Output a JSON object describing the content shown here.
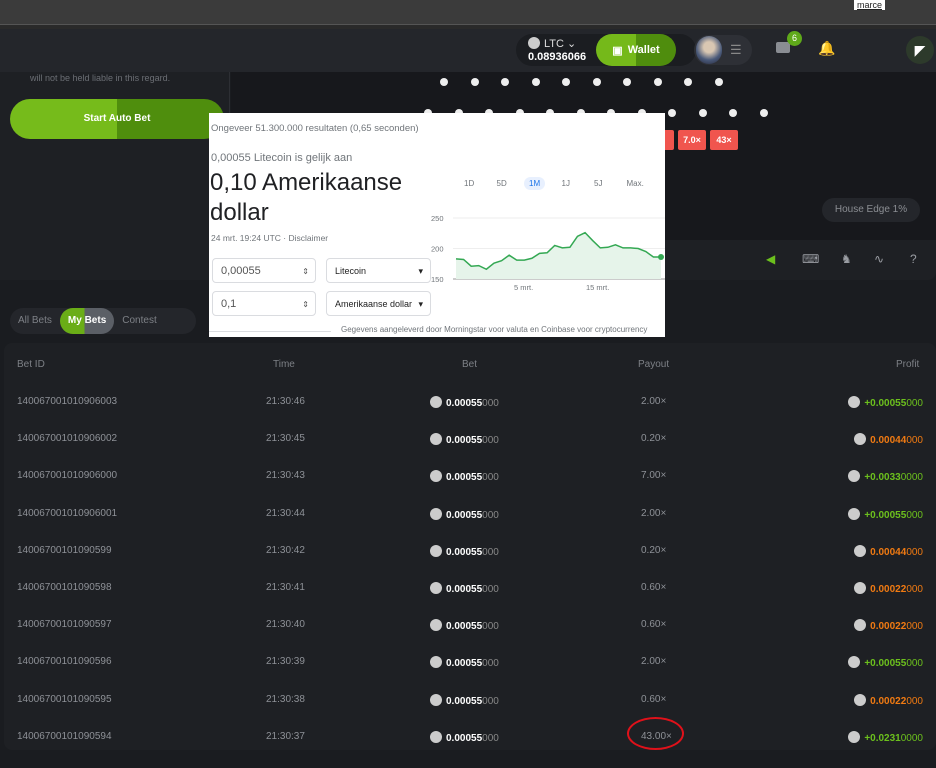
{
  "browser": {
    "user": "marce"
  },
  "header": {
    "currency": "LTC",
    "balance": "0.08936066",
    "wallet_label": "Wallet",
    "mail_count": "6"
  },
  "left_panel": {
    "note": "will not be held liable in this regard.",
    "autobet_label": "Start Auto Bet"
  },
  "game": {
    "multipliers": [
      "7.0×",
      "43×"
    ],
    "house_edge": "House Edge 1%"
  },
  "tabs": [
    "All Bets",
    "My Bets",
    "Contest"
  ],
  "table": {
    "headers": [
      "Bet ID",
      "Time",
      "Bet",
      "Payout",
      "Profit"
    ],
    "rows": [
      {
        "id": "140067001010906003",
        "time": "21:30:46",
        "bet": "0.00055",
        "bet_tail": "000",
        "payout": "2.00×",
        "profit": "+0.00055",
        "profit_tail": "000",
        "result": "win"
      },
      {
        "id": "140067001010906002",
        "time": "21:30:45",
        "bet": "0.00055",
        "bet_tail": "000",
        "payout": "0.20×",
        "profit": "0.00044",
        "profit_tail": "000",
        "result": "loss"
      },
      {
        "id": "140067001010906000",
        "time": "21:30:43",
        "bet": "0.00055",
        "bet_tail": "000",
        "payout": "7.00×",
        "profit": "+0.0033",
        "profit_tail": "0000",
        "result": "win"
      },
      {
        "id": "140067001010906001",
        "time": "21:30:44",
        "bet": "0.00055",
        "bet_tail": "000",
        "payout": "2.00×",
        "profit": "+0.00055",
        "profit_tail": "000",
        "result": "win"
      },
      {
        "id": "14006700101090599",
        "time": "21:30:42",
        "bet": "0.00055",
        "bet_tail": "000",
        "payout": "0.20×",
        "profit": "0.00044",
        "profit_tail": "000",
        "result": "loss"
      },
      {
        "id": "14006700101090598",
        "time": "21:30:41",
        "bet": "0.00055",
        "bet_tail": "000",
        "payout": "0.60×",
        "profit": "0.00022",
        "profit_tail": "000",
        "result": "loss"
      },
      {
        "id": "14006700101090597",
        "time": "21:30:40",
        "bet": "0.00055",
        "bet_tail": "000",
        "payout": "0.60×",
        "profit": "0.00022",
        "profit_tail": "000",
        "result": "loss"
      },
      {
        "id": "14006700101090596",
        "time": "21:30:39",
        "bet": "0.00055",
        "bet_tail": "000",
        "payout": "2.00×",
        "profit": "+0.00055",
        "profit_tail": "000",
        "result": "win"
      },
      {
        "id": "14006700101090595",
        "time": "21:30:38",
        "bet": "0.00055",
        "bet_tail": "000",
        "payout": "0.60×",
        "profit": "0.00022",
        "profit_tail": "000",
        "result": "loss"
      },
      {
        "id": "14006700101090594",
        "time": "21:30:37",
        "bet": "0.00055",
        "bet_tail": "000",
        "payout": "43.00×",
        "profit": "+0.0231",
        "profit_tail": "0000",
        "result": "win"
      }
    ]
  },
  "colors": {
    "win": "#6cc01d",
    "loss": "#f07a12",
    "accent": "#6aad17",
    "annotation": "#e0111a"
  },
  "google": {
    "results": "Ongeveer 51.300.000 resultaten (0,65 seconden)",
    "equals": "0,00055 Litecoin is gelijk aan",
    "big_value": "0,10 Amerikaanse dollar",
    "timestamp": "24 mrt. 19:24 UTC · Disclaimer",
    "from_value": "0,00055",
    "from_currency": "Litecoin",
    "to_value": "0,1",
    "to_currency": "Amerikaanse dollar",
    "ranges": [
      "1D",
      "5D",
      "1M",
      "1J",
      "5J",
      "Max."
    ],
    "active_range": "1M",
    "footer": "Gegevens aangeleverd door Morningstar voor valuta en Coinbase voor cryptocurrency"
  },
  "chart_data": {
    "type": "area",
    "ylim": [
      150,
      250
    ],
    "yticks": [
      "250",
      "200",
      "150"
    ],
    "xticks": [
      "5 mrt.",
      "15 mrt."
    ],
    "values": [
      183,
      182,
      171,
      172,
      166,
      176,
      180,
      189,
      181,
      181,
      184,
      192,
      193,
      205,
      201,
      202,
      220,
      226,
      213,
      201,
      202,
      206,
      201,
      201,
      200,
      195,
      186,
      186
    ],
    "color": "#34a853"
  }
}
